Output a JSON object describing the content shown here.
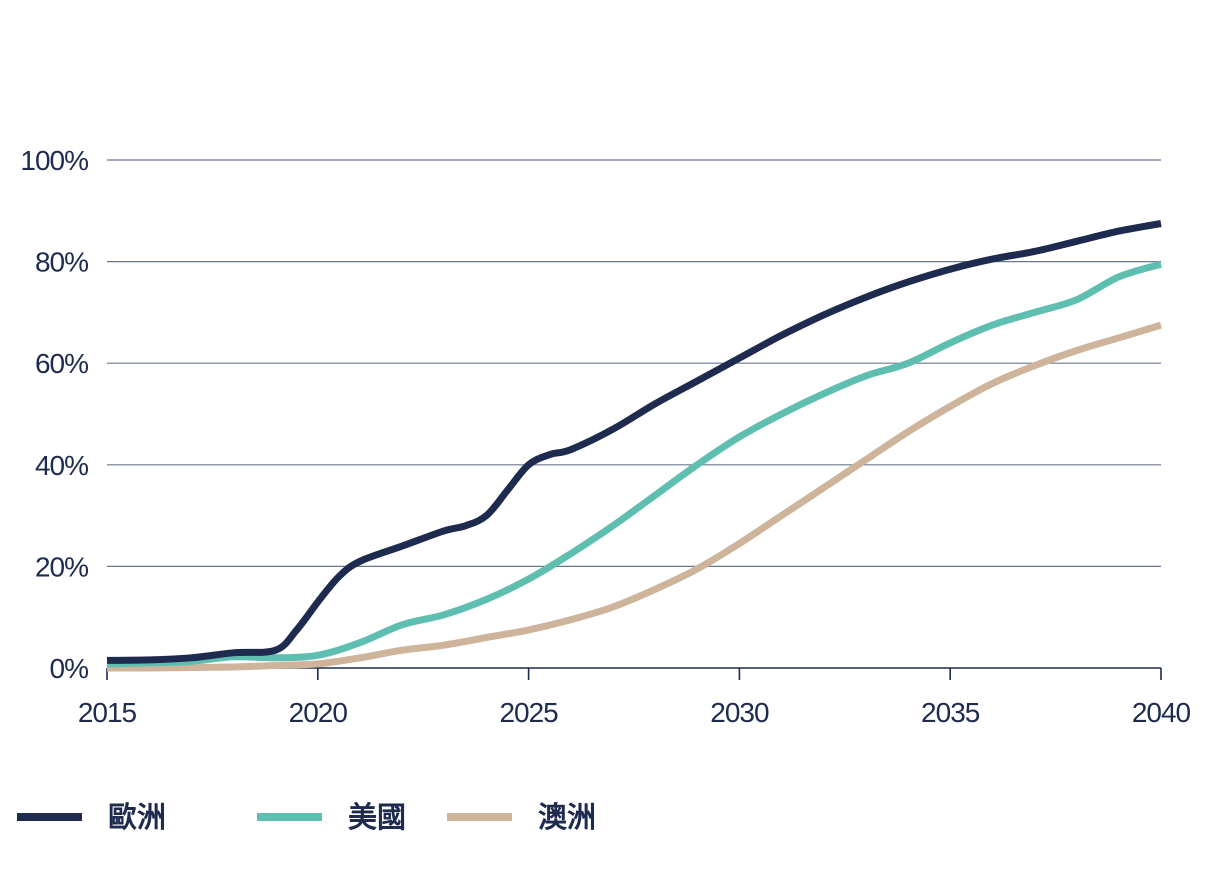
{
  "chart_data": {
    "type": "line",
    "title": "",
    "xlabel": "",
    "ylabel": "",
    "xlim": [
      2015,
      2040
    ],
    "ylim": [
      0,
      100
    ],
    "x_ticks": [
      "2015",
      "2020",
      "2025",
      "2030",
      "2035",
      "2040"
    ],
    "y_ticks": [
      "0%",
      "20%",
      "40%",
      "60%",
      "80%",
      "100%"
    ],
    "grid": "horizontal",
    "legend_position": "bottom",
    "series": [
      {
        "name": "歐洲",
        "color": "#1e2b4f",
        "points": [
          [
            2015,
            1.5
          ],
          [
            2016,
            1.6
          ],
          [
            2017,
            2.0
          ],
          [
            2018,
            3.0
          ],
          [
            2019,
            3.5
          ],
          [
            2019.5,
            7.5
          ],
          [
            2020,
            13
          ],
          [
            2020.5,
            18
          ],
          [
            2021,
            21
          ],
          [
            2022,
            24
          ],
          [
            2023,
            27
          ],
          [
            2023.5,
            28
          ],
          [
            2024,
            30
          ],
          [
            2024.5,
            35
          ],
          [
            2025,
            40
          ],
          [
            2025.5,
            42
          ],
          [
            2026,
            43
          ],
          [
            2027,
            47
          ],
          [
            2028,
            52
          ],
          [
            2029,
            56.5
          ],
          [
            2030,
            61
          ],
          [
            2031,
            65.5
          ],
          [
            2032,
            69.5
          ],
          [
            2033,
            73
          ],
          [
            2034,
            76
          ],
          [
            2035,
            78.5
          ],
          [
            2036,
            80.5
          ],
          [
            2037,
            82
          ],
          [
            2038,
            84
          ],
          [
            2039,
            86
          ],
          [
            2040,
            87.5
          ]
        ]
      },
      {
        "name": "美國",
        "color": "#5ebfb1",
        "points": [
          [
            2015,
            0.8
          ],
          [
            2016,
            1.0
          ],
          [
            2017,
            1.3
          ],
          [
            2018,
            2.2
          ],
          [
            2019,
            2.0
          ],
          [
            2020,
            2.5
          ],
          [
            2021,
            5
          ],
          [
            2022,
            8.5
          ],
          [
            2023,
            10.5
          ],
          [
            2024,
            13.5
          ],
          [
            2025,
            17.5
          ],
          [
            2026,
            22.5
          ],
          [
            2027,
            28
          ],
          [
            2028,
            34
          ],
          [
            2029,
            40
          ],
          [
            2030,
            45.5
          ],
          [
            2031,
            50
          ],
          [
            2032,
            54
          ],
          [
            2033,
            57.5
          ],
          [
            2034,
            60
          ],
          [
            2035,
            64
          ],
          [
            2036,
            67.5
          ],
          [
            2037,
            70
          ],
          [
            2038,
            72.5
          ],
          [
            2039,
            77
          ],
          [
            2040,
            79.5
          ]
        ]
      },
      {
        "name": "澳洲",
        "color": "#cdb49a",
        "points": [
          [
            2015,
            0
          ],
          [
            2016,
            0
          ],
          [
            2017,
            0.1
          ],
          [
            2018,
            0.2
          ],
          [
            2019,
            0.5
          ],
          [
            2020,
            0.8
          ],
          [
            2021,
            2
          ],
          [
            2022,
            3.5
          ],
          [
            2023,
            4.5
          ],
          [
            2024,
            6
          ],
          [
            2025,
            7.5
          ],
          [
            2026,
            9.5
          ],
          [
            2027,
            12
          ],
          [
            2028,
            15.5
          ],
          [
            2029,
            19.5
          ],
          [
            2030,
            24.5
          ],
          [
            2031,
            30
          ],
          [
            2032,
            35.5
          ],
          [
            2033,
            41
          ],
          [
            2034,
            46.5
          ],
          [
            2035,
            51.5
          ],
          [
            2036,
            56
          ],
          [
            2037,
            59.5
          ],
          [
            2038,
            62.5
          ],
          [
            2039,
            65
          ],
          [
            2040,
            67.5
          ]
        ]
      }
    ]
  }
}
